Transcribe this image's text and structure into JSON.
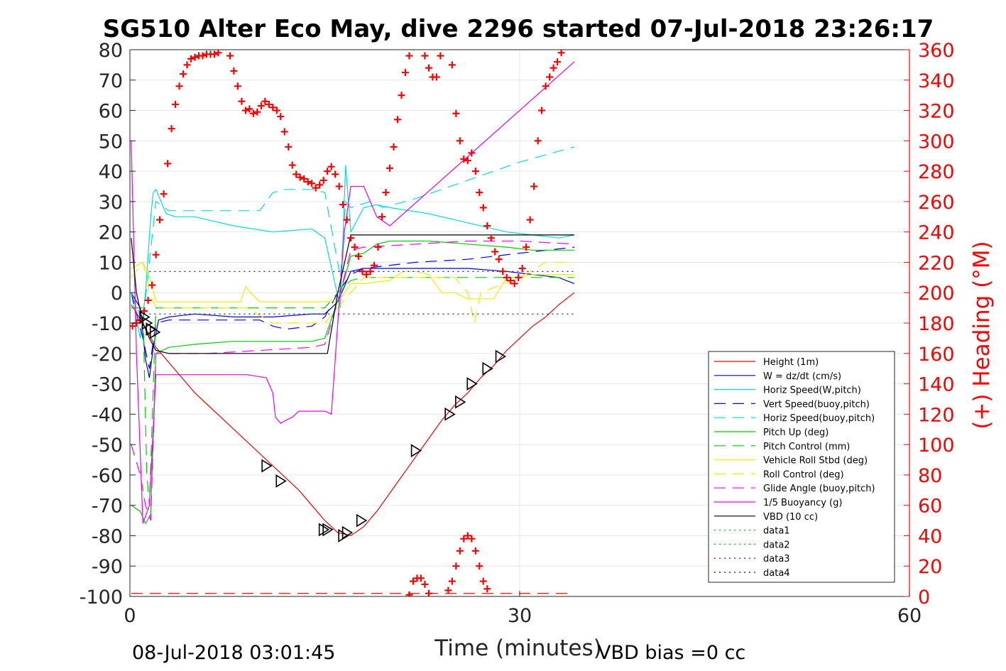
{
  "chart_data": {
    "type": "line",
    "title": "SG510 Alter Eco May, dive 2296 started 07-Jul-2018 23:26:17",
    "xlabel": "Time (minutes)",
    "ylabel_right": "(+) Heading (°M)",
    "xlim": [
      0,
      60
    ],
    "ylim": [
      -100,
      80
    ],
    "y2lim": [
      0,
      360
    ],
    "x_ticks": [
      "0",
      "30",
      "60"
    ],
    "y_ticks": [
      "80",
      "70",
      "60",
      "50",
      "40",
      "30",
      "20",
      "10",
      "0",
      "-10",
      "-20",
      "-30",
      "-40",
      "-50",
      "-60",
      "-70",
      "-80",
      "-90",
      "-100"
    ],
    "y2_ticks": [
      "360",
      "340",
      "320",
      "300",
      "280",
      "260",
      "240",
      "220",
      "200",
      "180",
      "160",
      "140",
      "120",
      "100",
      "80",
      "60",
      "40",
      "20",
      "0"
    ],
    "grid": true,
    "legend_position": "lower-right",
    "footer_left": "08-Jul-2018 03:01:45",
    "footer_right": "VBD bias =0 cc",
    "colors": {
      "red": "#ff0000",
      "blue": "#0000cc",
      "cyan": "#00dddd",
      "green": "#00cc00",
      "yellow": "#eeee00",
      "magenta": "#ee00ee",
      "black": "#000000",
      "navy": "#000088"
    },
    "series": [
      {
        "name": "Height (1m)",
        "color": "#ff0000",
        "dash": "",
        "x": [
          0.1,
          1.0,
          2.0,
          3.0,
          4.0,
          5.0,
          6.0,
          7.0,
          8.0,
          9.0,
          10.0,
          11.0,
          12.0,
          13.0,
          14.0,
          15.0,
          16.0,
          17.0,
          18.0,
          19.0,
          20.0,
          21.0,
          22.0,
          23.0,
          24.0,
          25.0,
          26.0,
          27.0,
          28.0,
          29.0,
          30.0,
          31.0,
          32.0,
          33.0,
          34.2
        ],
        "y": [
          -4,
          -10,
          -18,
          -23,
          -28,
          -33,
          -37,
          -41,
          -45,
          -49,
          -53,
          -57,
          -61,
          -65,
          -70,
          -75,
          -79,
          -80,
          -77,
          -72,
          -66,
          -60,
          -54,
          -48,
          -42,
          -37,
          -33,
          -28,
          -24,
          -19,
          -15,
          -11,
          -8,
          -4,
          0
        ]
      },
      {
        "name": "W = dz/dt (cm/s)",
        "color": "#0000cc",
        "dash": "",
        "x": [
          0.1,
          0.8,
          1.2,
          1.5,
          1.8,
          2.2,
          3.0,
          5.0,
          8.0,
          11.0,
          14.0,
          15.0,
          16.0,
          16.5,
          17.0,
          18.0,
          20.0,
          23.0,
          26.0,
          29.0,
          31.0,
          33.0,
          34.2
        ],
        "y": [
          0,
          -5,
          -22,
          -28,
          -18,
          -9,
          -8,
          -7,
          -8,
          -8,
          -7,
          -7,
          -3,
          2,
          7,
          8,
          8,
          8,
          8,
          7,
          6,
          5,
          3
        ]
      },
      {
        "name": "Horiz Speed(W,pitch)",
        "color": "#00dddd",
        "dash": "",
        "x": [
          0.1,
          0.8,
          1.2,
          1.6,
          1.8,
          2.0,
          2.4,
          2.8,
          3.5,
          5.0,
          8.0,
          11.0,
          14.0,
          15.0,
          16.2,
          16.6,
          17.0,
          18.0,
          19.0,
          20.0,
          23.0,
          26.0,
          29.0,
          31.0,
          33.0,
          34.2
        ],
        "y": [
          0,
          -15,
          0,
          25,
          33,
          34,
          30,
          26,
          25,
          25,
          22,
          20,
          21,
          18,
          -5,
          42,
          20,
          28,
          29,
          28,
          26,
          23,
          20,
          19,
          18,
          19
        ]
      },
      {
        "name": "Vert Speed(buoy,pitch)",
        "color": "#0000ee",
        "dash": "16,10",
        "x": [
          0.1,
          1.0,
          1.5,
          2.0,
          3.0,
          6.0,
          10.0,
          11.0,
          12.0,
          14.0,
          15.0,
          16.0,
          17.0,
          18.0,
          22.0,
          26.0,
          30.0,
          34.2
        ],
        "y": [
          0,
          -15,
          -25,
          -10,
          -9,
          -9,
          -9,
          -11,
          -12,
          -11,
          -8,
          0,
          6,
          8,
          10,
          11,
          13,
          15
        ]
      },
      {
        "name": "Horiz Speed(buoy,pitch)",
        "color": "#00dddd",
        "dash": "16,10",
        "x": [
          0.1,
          1.0,
          1.5,
          2.0,
          3.0,
          6.0,
          10.0,
          11.0,
          12.0,
          14.0,
          15.0,
          16.2,
          16.6,
          17.0,
          18.5,
          19.5,
          22.0,
          26.0,
          30.0,
          34.2
        ],
        "y": [
          0,
          -10,
          10,
          30,
          27,
          27,
          27,
          33,
          34,
          34,
          33,
          5,
          30,
          28,
          30,
          28,
          31,
          37,
          43,
          48
        ]
      },
      {
        "name": "Pitch Up (deg)",
        "color": "#00cc00",
        "dash": "",
        "x": [
          0.1,
          0.8,
          1.2,
          1.6,
          2.0,
          3.0,
          5.0,
          8.0,
          11.0,
          14.0,
          15.0,
          16.2,
          17.0,
          18.0,
          19.0,
          20.0,
          23.0,
          26.0,
          29.0,
          31.0,
          33.0,
          34.2
        ],
        "y": [
          -70,
          -72,
          -76,
          -73,
          -20,
          -18,
          -17,
          -16,
          -16,
          -16,
          -15,
          0,
          12,
          13,
          16,
          17,
          17,
          16,
          15,
          14,
          14,
          14
        ]
      },
      {
        "name": "Pitch Control (mm)",
        "color": "#00cc00",
        "dash": "16,10",
        "x": [
          0.1,
          1.0,
          1.3,
          1.5,
          2.0,
          3.0,
          6.0,
          10.0,
          14.0,
          15.0,
          16.0,
          17.0,
          18.0,
          22.0,
          26.0,
          30.0,
          34.2
        ],
        "y": [
          -5,
          -5,
          -60,
          -70,
          -5,
          -5,
          -5,
          -5,
          -5,
          -5,
          0,
          4,
          5,
          5,
          5,
          5,
          5
        ]
      },
      {
        "name": "Vehicle Roll Stbd (deg)",
        "color": "#eeee00",
        "dash": "",
        "x": [
          0.1,
          1.0,
          1.6,
          2.0,
          2.6,
          3.0,
          6.0,
          8.5,
          8.9,
          9.3,
          10.0,
          11.0,
          14.0,
          15.0,
          16.2,
          17.0,
          18.0,
          20.0,
          21.0,
          22.0,
          23.0,
          24.0,
          25.0,
          26.0,
          27.0,
          28.0,
          29.0,
          30.0,
          31.0,
          32.0,
          33.0,
          34.2
        ],
        "y": [
          8,
          10,
          4,
          -3,
          -3,
          -3,
          -3,
          -3,
          2,
          0,
          -3,
          -3,
          -3,
          -3,
          -2,
          3,
          3,
          4,
          7,
          7,
          6,
          0,
          0,
          -2,
          -2,
          -2,
          5,
          5,
          6,
          6,
          6,
          6
        ]
      },
      {
        "name": "Roll Control (deg)",
        "color": "#eeee00",
        "dash": "16,10",
        "x": [
          0.1,
          1.0,
          1.5,
          2.0,
          3.0,
          6.0,
          9.0,
          11.0,
          14.0,
          15.0,
          16.0,
          17.0,
          18.0,
          22.0,
          25.0,
          26.0,
          26.5,
          27.0,
          30.0,
          32.0,
          34.2
        ],
        "y": [
          5,
          10,
          0,
          -5,
          -5,
          -5,
          -5,
          -10,
          -10,
          -10,
          -5,
          0,
          5,
          5,
          5,
          0,
          -10,
          0,
          5,
          10,
          10
        ]
      },
      {
        "name": "Glide Angle (buoy,pitch)",
        "color": "#ee00ee",
        "dash": "16,10",
        "x": [
          0.1,
          0.8,
          1.2,
          1.6,
          2.0,
          3.0,
          6.0,
          10.0,
          14.0,
          15.0,
          16.2,
          17.0,
          18.0,
          22.0,
          26.0,
          30.0,
          34.2
        ],
        "y": [
          -50,
          -60,
          -70,
          -75,
          -20,
          -20,
          -20,
          -19,
          -18,
          -17,
          0,
          14,
          15,
          16,
          17,
          17,
          16
        ]
      },
      {
        "name": "1/5 Buoyancy (g)",
        "color": "#ee00ee",
        "dash": "",
        "x": [
          0.1,
          0.5,
          1.0,
          1.5,
          2.0,
          3.0,
          6.0,
          9.0,
          10.5,
          11.0,
          11.2,
          11.6,
          12.0,
          12.5,
          13.0,
          14.0,
          15.0,
          15.5,
          16.0,
          16.5,
          17.0,
          18.0,
          19.0,
          20.0,
          34.2
        ],
        "y": [
          50,
          -20,
          -76,
          -70,
          -27,
          -27,
          -27,
          -27,
          -28,
          -33,
          -41,
          -43,
          -42,
          -41,
          -39,
          -39,
          -39,
          -40,
          -10,
          20,
          35,
          35,
          25,
          22,
          76
        ]
      },
      {
        "name": "VBD (10 cc)",
        "color": "#000000",
        "dash": "",
        "x": [
          0.1,
          0.5,
          1.0,
          1.5,
          2.0,
          3.0,
          6.0,
          10.0,
          14.0,
          15.0,
          15.2,
          16.0,
          17.0,
          18.0,
          22.0,
          26.0,
          30.0,
          34.2
        ],
        "y": [
          18,
          0,
          -10,
          -15,
          -19,
          -20,
          -20,
          -20,
          -20,
          -20,
          -20,
          0,
          19,
          19,
          19,
          19,
          19,
          19
        ]
      },
      {
        "name": "data1",
        "color": "#00cc00",
        "dash": "2,5",
        "x": [],
        "y": []
      },
      {
        "name": "data2",
        "color": "#00cc00",
        "dash": "2,5",
        "x": [],
        "y": []
      },
      {
        "name": "data3",
        "color": "#0000cc",
        "dash": "2,5",
        "x": [
          1.5,
          34.2
        ],
        "y": [
          7,
          7
        ]
      },
      {
        "name": "data4",
        "color": "#0000cc",
        "dash": "2,5",
        "x": [
          1.5,
          34.2
        ],
        "y": [
          -7,
          -7
        ]
      }
    ],
    "heading_series": {
      "color": "#ff0000",
      "axis": "right",
      "x": [
        0.2,
        0.5,
        0.8,
        1.1,
        1.4,
        1.7,
        2.0,
        2.3,
        2.6,
        2.9,
        3.2,
        3.5,
        3.8,
        4.1,
        4.4,
        4.7,
        5.0,
        5.3,
        5.6,
        5.9,
        6.2,
        6.5,
        6.8,
        7.1,
        7.4,
        7.7,
        8.0,
        8.3,
        8.6,
        8.9,
        9.2,
        9.5,
        9.8,
        10.1,
        10.4,
        10.7,
        11.0,
        11.3,
        11.6,
        11.9,
        12.2,
        12.5,
        12.8,
        13.1,
        13.4,
        13.7,
        14.0,
        14.3,
        14.6,
        14.9,
        15.2,
        15.5,
        15.8,
        16.1,
        16.4,
        16.7,
        17.0,
        17.3,
        17.6,
        17.9,
        18.2,
        18.5,
        18.8,
        19.1,
        19.4,
        19.7,
        20.0,
        20.3,
        20.6,
        20.9,
        21.2,
        21.5,
        21.8,
        22.1,
        22.4,
        22.7,
        23.0,
        23.3,
        23.6,
        23.9,
        24.2,
        24.5,
        24.8,
        25.1,
        25.4,
        25.7,
        26.0,
        26.3,
        26.6,
        26.9,
        27.2,
        27.5,
        27.8,
        28.1,
        28.4,
        28.7,
        29.0,
        29.3,
        29.6,
        29.9,
        30.2,
        30.5,
        30.8,
        31.1,
        31.4,
        31.7,
        32.0,
        32.3,
        32.6,
        32.9,
        33.2,
        33.5,
        33.8,
        34.1,
        34.4
      ],
      "y": [
        178,
        180,
        182,
        188,
        195,
        205,
        225,
        248,
        265,
        285,
        308,
        324,
        336,
        344,
        350,
        354,
        355,
        356,
        356,
        357,
        357,
        357,
        358,
        362,
        362,
        356,
        346,
        336,
        326,
        320,
        321,
        318,
        319,
        323,
        326,
        324,
        322,
        320,
        316,
        306,
        296,
        284,
        278,
        276,
        275,
        273,
        272,
        269,
        271,
        274,
        280,
        283,
        278,
        270,
        258,
        248,
        236,
        230,
        224,
        214,
        212,
        214,
        218,
        230,
        250,
        266,
        282,
        296,
        314,
        330,
        345,
        356,
        362,
        370,
        374,
        356,
        348,
        342,
        342,
        356,
        365,
        368,
        350,
        318,
        300,
        288,
        287,
        292,
        280,
        266,
        256,
        244,
        236,
        227,
        222,
        214,
        210,
        208,
        206,
        210,
        216,
        230,
        248,
        270,
        300,
        320,
        336,
        342,
        348,
        352,
        358,
        362,
        366,
        368,
        372
      ]
    },
    "heading_bottom": {
      "x": [
        21.5,
        21.8,
        22.1,
        22.4,
        22.7,
        23.0,
        24.5,
        24.8,
        25.1,
        25.4,
        25.7,
        26.0,
        26.3,
        26.6,
        26.9,
        27.2,
        27.5
      ],
      "y": [
        1,
        10,
        12,
        12,
        8,
        2,
        4,
        10,
        20,
        30,
        38,
        40,
        38,
        30,
        20,
        10,
        5
      ]
    },
    "markers": {
      "color": "#000000",
      "x": [
        1.1,
        1.3,
        1.6,
        1.9,
        10.5,
        11.6,
        14.9,
        15.2,
        16.4,
        16.7,
        17.8,
        22.0,
        24.6,
        25.4,
        26.3,
        27.5,
        28.5
      ],
      "y": [
        -8,
        -10,
        -12,
        -13,
        -57,
        -62,
        -78,
        -78,
        -80,
        -79,
        -75,
        -52,
        -40,
        -36,
        -30,
        -25,
        -21
      ]
    },
    "pitch_control_line": {
      "y": -99,
      "color": "#ff0000",
      "dash": "16,10",
      "x": [
        0.1,
        34.2
      ]
    }
  }
}
